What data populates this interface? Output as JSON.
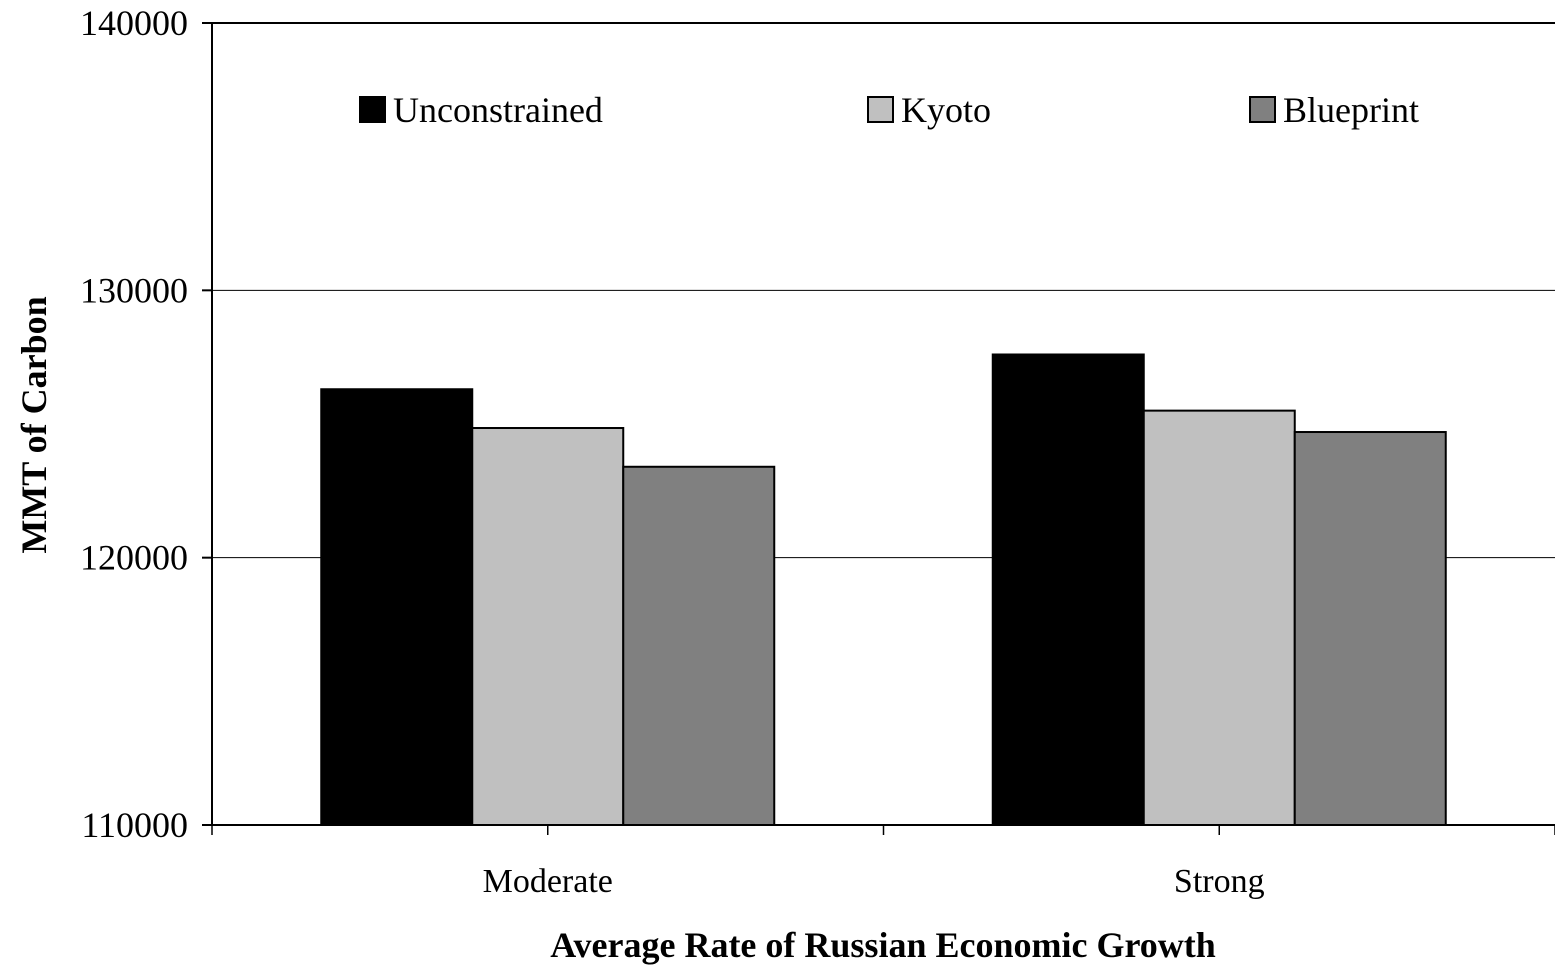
{
  "colors": {
    "Unconstrained": "#000000",
    "Kyoto": "#c0c0c0",
    "Blueprint": "#808080",
    "gridline": "#000000",
    "background": "#ffffff"
  },
  "chart_data": {
    "type": "bar",
    "title": "",
    "xlabel": "Average Rate of Russian Economic Growth",
    "ylabel": "MMT of Carbon",
    "categories": [
      "Moderate",
      "Strong"
    ],
    "series": [
      {
        "name": "Unconstrained",
        "values": [
          126300,
          127600
        ]
      },
      {
        "name": "Kyoto",
        "values": [
          124850,
          125500
        ]
      },
      {
        "name": "Blueprint",
        "values": [
          123400,
          124700
        ]
      }
    ],
    "ylim": [
      110000,
      140000
    ],
    "yticks": [
      "110000",
      "120000",
      "130000",
      "140000"
    ],
    "grid": true,
    "legend_position": "top"
  }
}
